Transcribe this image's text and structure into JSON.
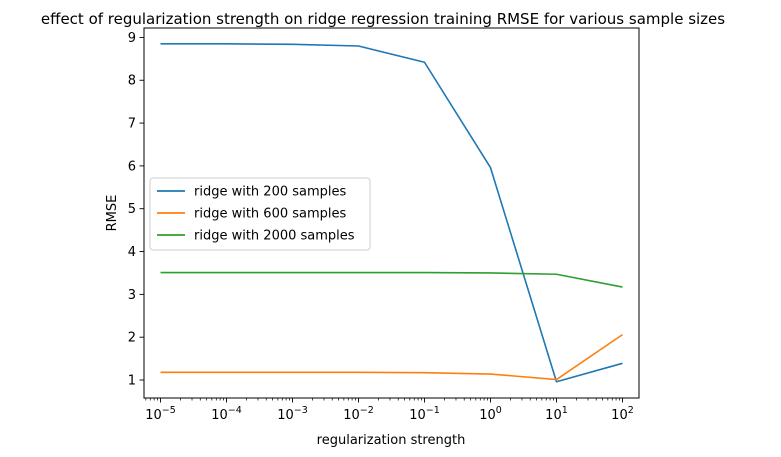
{
  "chart_data": {
    "type": "line",
    "title": "effect of regularization strength on ridge regression training RMSE for various sample sizes",
    "xlabel": "regularization strength",
    "ylabel": "RMSE",
    "x_scale": "log",
    "xlim": [
      5.62e-06,
      178
    ],
    "ylim": [
      0.58,
      9.22
    ],
    "x": [
      1e-05,
      0.0001,
      0.001,
      0.01,
      0.1,
      1,
      10,
      100
    ],
    "x_ticks": [
      {
        "value": 1e-05,
        "base": "10",
        "exp": "−5"
      },
      {
        "value": 0.0001,
        "base": "10",
        "exp": "−4"
      },
      {
        "value": 0.001,
        "base": "10",
        "exp": "−3"
      },
      {
        "value": 0.01,
        "base": "10",
        "exp": "−2"
      },
      {
        "value": 0.1,
        "base": "10",
        "exp": "−1"
      },
      {
        "value": 1,
        "base": "10",
        "exp": "0"
      },
      {
        "value": 10,
        "base": "10",
        "exp": "1"
      },
      {
        "value": 100,
        "base": "10",
        "exp": "2"
      }
    ],
    "y_ticks": [
      1,
      2,
      3,
      4,
      5,
      6,
      7,
      8,
      9
    ],
    "grid": false,
    "legend_position": "center-left",
    "series": [
      {
        "name": "ridge with 200 samples",
        "color": "#1f77b4",
        "values": [
          8.85,
          8.85,
          8.84,
          8.8,
          8.42,
          5.96,
          0.96,
          1.39
        ]
      },
      {
        "name": "ridge with 600 samples",
        "color": "#ff7f0e",
        "values": [
          1.18,
          1.18,
          1.18,
          1.18,
          1.17,
          1.14,
          1.01,
          2.06
        ]
      },
      {
        "name": "ridge with 2000 samples",
        "color": "#2ca02c",
        "values": [
          3.51,
          3.51,
          3.51,
          3.51,
          3.51,
          3.5,
          3.47,
          3.17
        ]
      }
    ]
  }
}
